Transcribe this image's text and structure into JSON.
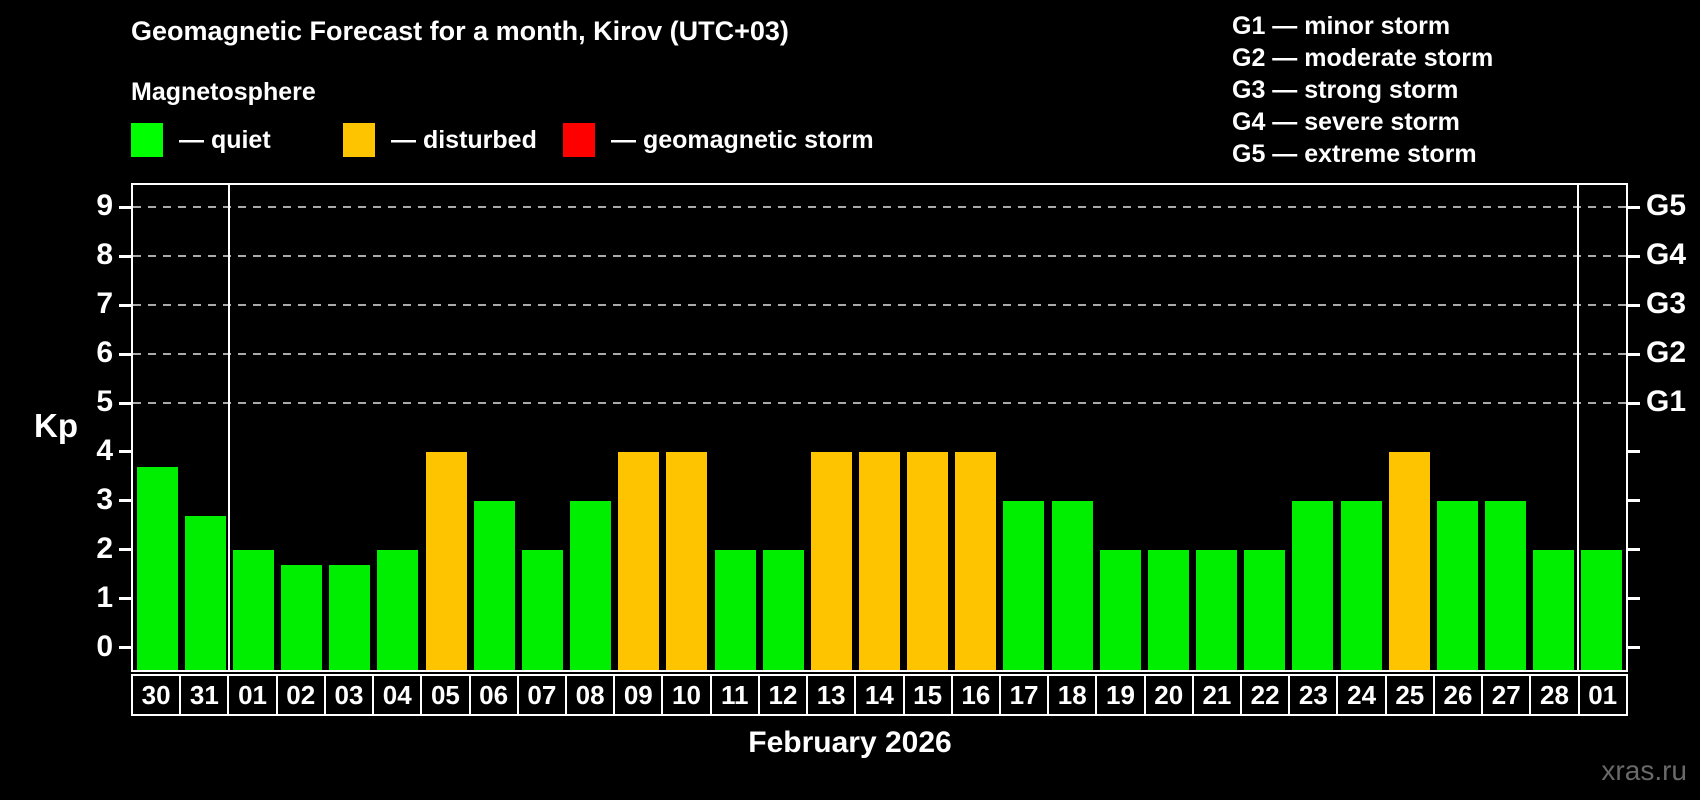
{
  "title": "Geomagnetic Forecast for a month, Kirov (UTC+03)",
  "subtitle": "Magnetosphere",
  "legend": {
    "items": [
      {
        "name": "quiet",
        "label": "— quiet",
        "color": "#00ff00"
      },
      {
        "name": "disturbed",
        "label": "— disturbed",
        "color": "#ffc400"
      },
      {
        "name": "storm",
        "label": "— geomagnetic storm",
        "color": "#ff0000"
      }
    ]
  },
  "storm_scale_legend": [
    "G1 — minor storm",
    "G2 — moderate storm",
    "G3 — strong storm",
    "G4 — severe storm",
    "G5 — extreme storm"
  ],
  "chart_data": {
    "type": "bar",
    "title": "Geomagnetic Forecast for a month, Kirov (UTC+03)",
    "ylabel": "Kp",
    "xlabel": "February 2026",
    "x_categories": [
      "30",
      "31",
      "01",
      "02",
      "03",
      "04",
      "05",
      "06",
      "07",
      "08",
      "09",
      "10",
      "11",
      "12",
      "13",
      "14",
      "15",
      "16",
      "17",
      "18",
      "19",
      "20",
      "21",
      "22",
      "23",
      "24",
      "25",
      "26",
      "27",
      "28",
      "01"
    ],
    "values": [
      3.7,
      2.7,
      2,
      1.7,
      1.7,
      2,
      4,
      3,
      2,
      3,
      4,
      4,
      2,
      2,
      4,
      4,
      4,
      4,
      3,
      3,
      2,
      2,
      2,
      2,
      3,
      3,
      4,
      3,
      3,
      2,
      2
    ],
    "statuses": [
      "quiet",
      "quiet",
      "quiet",
      "quiet",
      "quiet",
      "quiet",
      "disturbed",
      "quiet",
      "quiet",
      "quiet",
      "disturbed",
      "disturbed",
      "quiet",
      "quiet",
      "disturbed",
      "disturbed",
      "disturbed",
      "disturbed",
      "quiet",
      "quiet",
      "quiet",
      "quiet",
      "quiet",
      "quiet",
      "quiet",
      "quiet",
      "disturbed",
      "quiet",
      "quiet",
      "quiet",
      "quiet"
    ],
    "bar_colors": {
      "quiet": "#00ee00",
      "disturbed": "#ffc400",
      "storm": "#ff0000"
    },
    "ylim": [
      -0.45,
      9.45
    ],
    "y_ticks": [
      0,
      1,
      2,
      3,
      4,
      5,
      6,
      7,
      8,
      9
    ],
    "right_axis_labels": [
      {
        "value": 5,
        "label": "G1"
      },
      {
        "value": 6,
        "label": "G2"
      },
      {
        "value": 7,
        "label": "G3"
      },
      {
        "value": 8,
        "label": "G4"
      },
      {
        "value": 9,
        "label": "G5"
      }
    ],
    "grid_levels": [
      5,
      6,
      7,
      8,
      9
    ],
    "grid": "dashed horizontal lines at storm levels",
    "legend_position": "top-left",
    "month_boundary_indices": [
      2,
      30
    ]
  },
  "watermark": "xras.ru"
}
